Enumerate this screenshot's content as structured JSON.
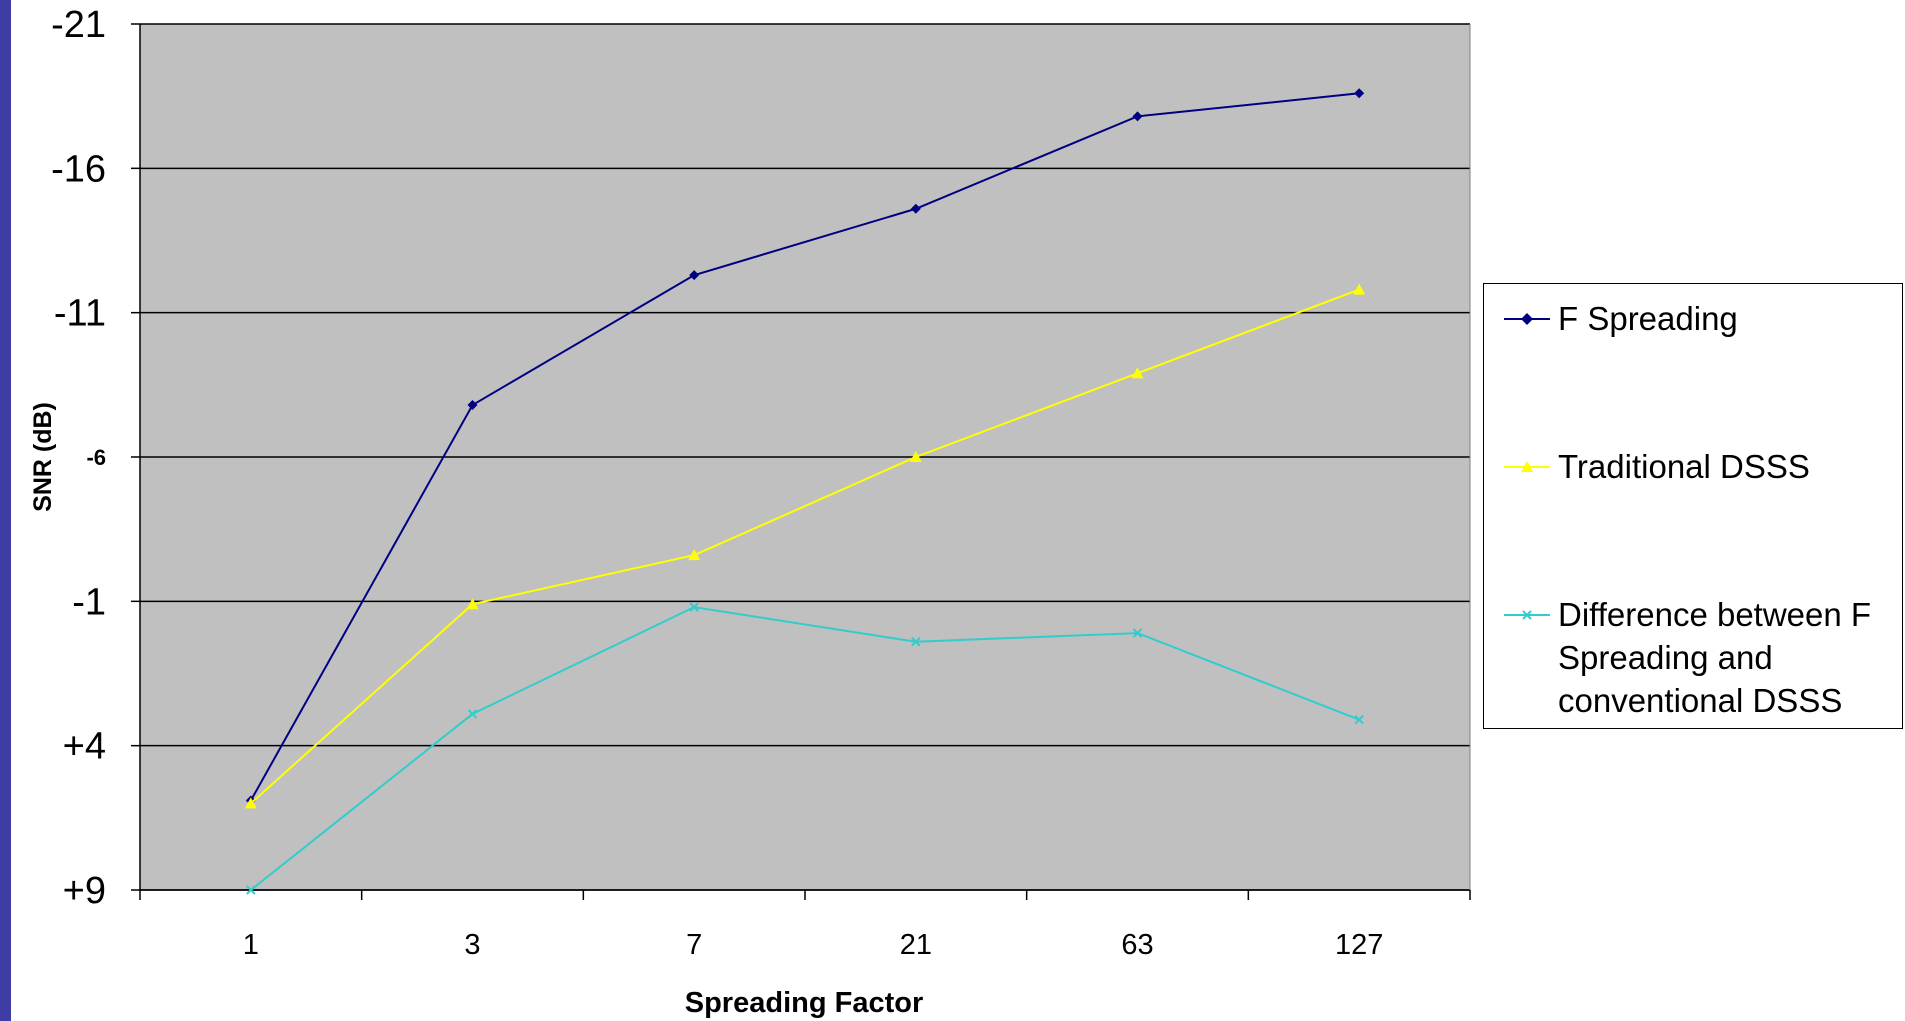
{
  "chart_data": {
    "type": "line",
    "xlabel": "Spreading Factor",
    "ylabel": "SNR (dB)",
    "categories": [
      "1",
      "3",
      "7",
      "21",
      "63",
      "127"
    ],
    "y_ticks": [
      {
        "value": -21,
        "label": "-21"
      },
      {
        "value": -16,
        "label": "-16"
      },
      {
        "value": -11,
        "label": "-11"
      },
      {
        "value": -6,
        "label": "-6"
      },
      {
        "value": -1,
        "label": "-1"
      },
      {
        "value": 4,
        "label": "+4"
      },
      {
        "value": 9,
        "label": "+9"
      }
    ],
    "ylim": [
      -21,
      9
    ],
    "y_inverted": true,
    "grid": true,
    "plot_background": "#c0c0c0",
    "legend_position": "right",
    "series": [
      {
        "name": "F Spreading",
        "color": "#000080",
        "marker": "diamond",
        "values": [
          5.9,
          -7.8,
          -12.3,
          -14.6,
          -17.8,
          -18.6
        ]
      },
      {
        "name": "Traditional DSSS",
        "color": "#ffff00",
        "marker": "triangle",
        "values": [
          6.0,
          -0.9,
          -2.6,
          -6.0,
          -8.9,
          -11.8
        ]
      },
      {
        "name": "Difference between F Spreading and conventional DSSS",
        "legend_label": "Difference between F\nSpreading and\nconventional DSSS",
        "color": "#33cccc",
        "marker": "x",
        "values": [
          9.0,
          2.9,
          -0.8,
          0.4,
          0.1,
          3.1
        ]
      }
    ]
  }
}
